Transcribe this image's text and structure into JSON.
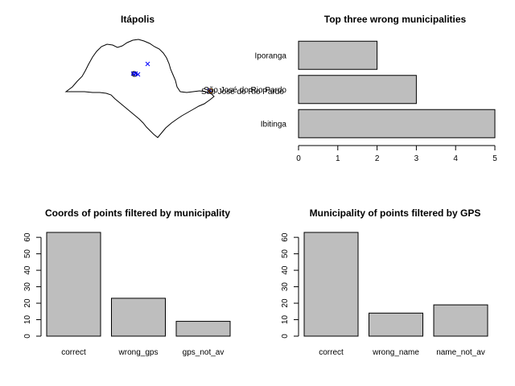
{
  "chart_data": [
    {
      "type": "map",
      "title": "Itápolis",
      "markers": [
        {
          "kind": "correct",
          "label": "",
          "color": "#000000",
          "symbol": "circle"
        },
        {
          "kind": "wrong_gps",
          "label": "",
          "color": "#0000ff",
          "symbol": "cross"
        },
        {
          "kind": "other",
          "label": "",
          "color": "#ff8c00",
          "symbol": "circle"
        }
      ],
      "annotation": "São José do Rio Pardo"
    },
    {
      "type": "bar",
      "orientation": "horizontal",
      "title": "Top three wrong municipalities",
      "categories": [
        "Ibitinga",
        "São José do Rio Pardo",
        "Iporanga"
      ],
      "values": [
        5,
        3,
        2
      ],
      "xlim": [
        0,
        5
      ],
      "xticks": [
        0,
        1,
        2,
        3,
        4,
        5
      ],
      "bar_color": "#bebebe"
    },
    {
      "type": "bar",
      "title": "Coords of points filtered by municipality",
      "categories": [
        "correct",
        "wrong_gps",
        "gps_not_av"
      ],
      "values": [
        63,
        23,
        9
      ],
      "ylim": [
        0,
        63
      ],
      "yticks": [
        0,
        10,
        20,
        30,
        40,
        50,
        60
      ],
      "bar_color": "#bebebe"
    },
    {
      "type": "bar",
      "title": "Municipality of points filtered by GPS",
      "categories": [
        "correct",
        "wrong_name",
        "name_not_av"
      ],
      "values": [
        63,
        14,
        19
      ],
      "ylim": [
        0,
        63
      ],
      "yticks": [
        0,
        10,
        20,
        30,
        40,
        50,
        60
      ],
      "bar_color": "#bebebe"
    }
  ]
}
